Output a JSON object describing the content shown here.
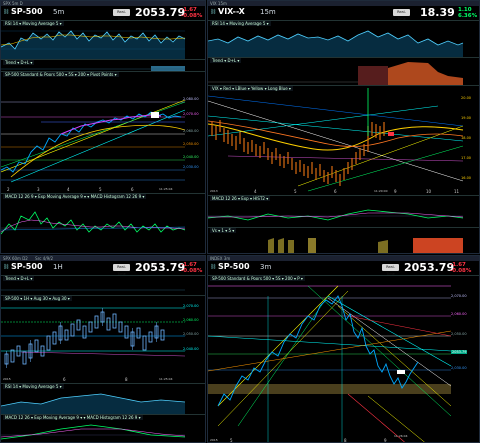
{
  "panels": {
    "tl": {
      "title": "SPX 5m D",
      "symbol": "SP-500",
      "timeframe": "5m",
      "price": "2053.79",
      "change": "-1.67",
      "change_pct": "-0.08%",
      "realtime_label": "Real-Time",
      "sub_rsi": "RSI 14 ▾ Moving Average 5 ▾",
      "sub_trend": "Trend ▾ D+L ▾",
      "sub_main": "SP-500 Standard & Poors 500 ▾ 5S ▾ 200 ▾ Pivot Points ▾",
      "sub_macd": "MACD 12 26 9 ▾ Exp Moving Average 9 ▾ ▾ MACD Histogram 12 26 9 ▾",
      "x_labels": [
        "2",
        "3",
        "4",
        "5",
        "6"
      ],
      "time_label": "11:25:04"
    },
    "tr": {
      "title": "VIX 15m",
      "symbol": "VIX--X",
      "timeframe": "15m",
      "price": "18.39",
      "change": "1.10",
      "change_pct": "6.36%",
      "realtime_label": "Real-Time",
      "sub_rsi": "RSI 14 ▾ Moving Average 5 ▾",
      "sub_trend": "Trend ▾ D+L ▾",
      "sub_main": "VIX ▾ Red ▾ LBlue ▾ Yellow ▾ Long Blue ▾",
      "sub_macd": "MACD 12 26 ▾ Exp ▾ HIST2 ▾",
      "sub_vs": "Vs ▾ 1 ▾ 5 ▾",
      "x_labels": [
        "2013",
        "4",
        "5",
        "6",
        "9",
        "10",
        "11"
      ],
      "time_label": "11:20:00",
      "y_labels": [
        "20.00",
        "19.00",
        "18.00",
        "17.00",
        "16.00"
      ]
    },
    "bl": {
      "title": "SPX 60m D2",
      "title_extra": "Src 4/9/2",
      "symbol": "SP-500",
      "timeframe": "1H",
      "price": "2053.79",
      "change": "-1.67",
      "change_pct": "-0.08%",
      "realtime_label": "Real-Time",
      "sub_trend": "Trend ▾ D+L ▾",
      "sub_main": "SP-500 ▾ 1H ▾ Aug 30 ▾ Aug 30 ▾",
      "sub_rsi": "RSI 14 ▾ Moving Average 5 ▾",
      "sub_macd": "MACD 12 26 ▾ Exp Moving Average 9 ▾ ▾ MACD Histogram 12 26 9 ▾",
      "x_labels": [
        "2015",
        "6",
        "8"
      ],
      "time_label": "11:25:04"
    },
    "br": {
      "title": "INDEX 3m",
      "symbol": "SP-500",
      "timeframe": "3m",
      "price": "2053.79",
      "change": "-1.67",
      "change_pct": "-0.08%",
      "realtime_label": "Real-Time",
      "sub_main": "SP-500 Standard & Poors 500 ▾ 5S ▾ 200 ▾ P ▾",
      "x_labels": [
        "2015",
        "5",
        "8",
        "9"
      ],
      "time_label": "11:26:04",
      "y_labels": [
        "2,070.00",
        "2,060.00",
        "2,050.00",
        "2,040.00",
        "2,030.00"
      ],
      "price_tag": "2053.79"
    }
  },
  "colors": {
    "up": "#00ff66",
    "down": "#ff3344",
    "accent": "#00ffff",
    "candle_orange": "#d86a10"
  }
}
